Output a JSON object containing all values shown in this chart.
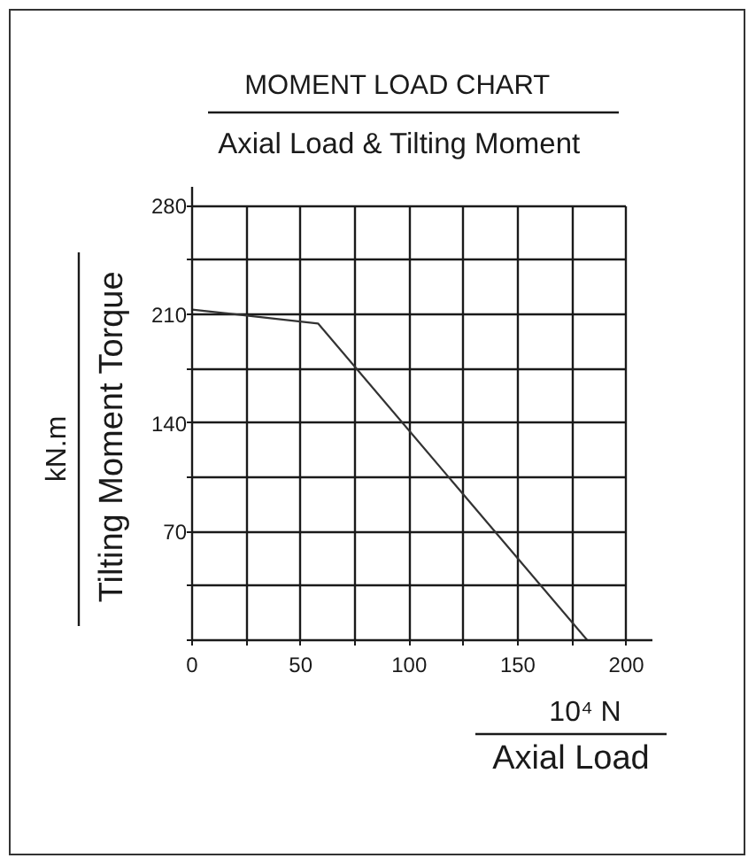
{
  "chart_data": {
    "type": "line",
    "title": "MOMENT LOAD CHART",
    "subtitle": "Axial Load & Tilting Moment",
    "xlabel": "10⁴ N\nAxial Load",
    "ylabel": "kN.m\nTilting Moment Torque",
    "x": [
      0,
      58,
      182
    ],
    "values": [
      213,
      204,
      0
    ],
    "color": "#333333",
    "line_style": "solid",
    "xlim": [
      0,
      212
    ],
    "ylim": [
      0,
      292
    ],
    "xticks": [
      0,
      {
        "value": 25,
        "label": null
      },
      50,
      {
        "value": 75,
        "label": null
      },
      100,
      {
        "value": 125,
        "label": null
      },
      150,
      {
        "value": 175,
        "label": null
      },
      200
    ],
    "yticks": [
      {
        "value": 0,
        "label": null
      },
      {
        "value": 35,
        "label": null
      },
      70,
      {
        "value": 105,
        "label": null
      },
      140,
      {
        "value": 175,
        "label": null
      },
      210,
      {
        "value": 245,
        "label": null
      },
      280
    ],
    "grid": true
  }
}
